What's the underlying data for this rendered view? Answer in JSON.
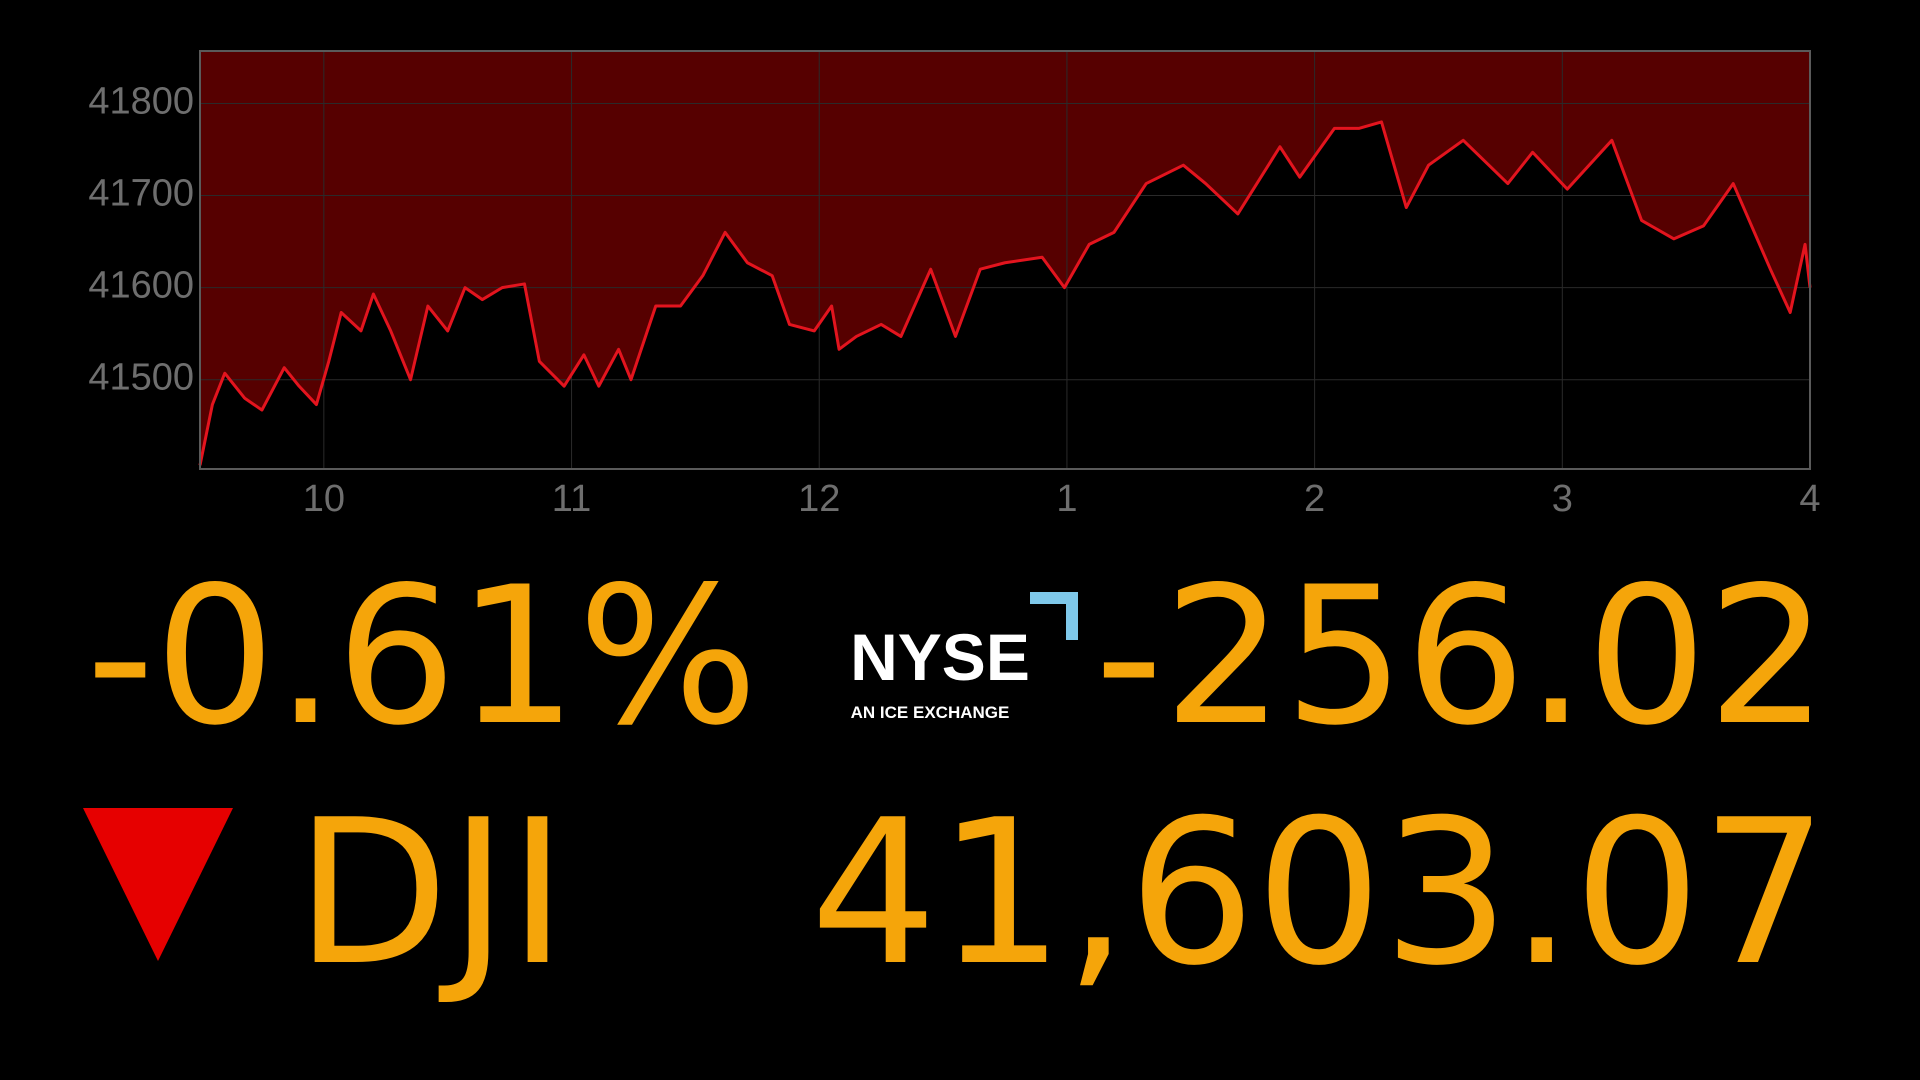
{
  "chart_data": {
    "type": "line",
    "x": [
      9.5,
      9.55,
      9.6,
      9.68,
      9.75,
      9.84,
      9.9,
      9.97,
      10.02,
      10.07,
      10.15,
      10.2,
      10.27,
      10.35,
      10.42,
      10.5,
      10.57,
      10.64,
      10.72,
      10.81,
      10.87,
      10.97,
      11.05,
      11.11,
      11.19,
      11.24,
      11.34,
      11.44,
      11.53,
      11.62,
      11.71,
      11.81,
      11.88,
      11.98,
      12.05,
      12.08,
      12.15,
      12.25,
      12.33,
      12.45,
      12.55,
      12.65,
      12.75,
      12.9,
      12.99,
      13.09,
      13.19,
      13.32,
      13.47,
      13.56,
      13.69,
      13.86,
      13.94,
      14.08,
      14.18,
      14.27,
      14.37,
      14.46,
      14.6,
      14.78,
      14.88,
      15.02,
      15.2,
      15.32,
      15.45,
      15.57,
      15.69,
      15.84,
      15.92,
      15.98,
      16.0
    ],
    "values": [
      41407,
      41473,
      41507,
      41480,
      41467,
      41513,
      41493,
      41473,
      41520,
      41573,
      41553,
      41593,
      41553,
      41500,
      41580,
      41553,
      41600,
      41587,
      41600,
      41604,
      41520,
      41493,
      41527,
      41493,
      41533,
      41500,
      41580,
      41580,
      41613,
      41660,
      41627,
      41613,
      41560,
      41553,
      41580,
      41533,
      41547,
      41560,
      41547,
      41620,
      41547,
      41620,
      41627,
      41633,
      41600,
      41647,
      41660,
      41713,
      41733,
      41713,
      41680,
      41753,
      41720,
      41773,
      41773,
      41780,
      41687,
      41733,
      41760,
      41713,
      41747,
      41707,
      41760,
      41673,
      41653,
      41667,
      41713,
      41620,
      41573,
      41647,
      41600
    ],
    "color": "#e3141e",
    "fill_color": "#560000",
    "xlim": [
      9.5,
      16
    ],
    "xticks": [
      10,
      11,
      12,
      {
        "value": 13,
        "label": "1"
      },
      {
        "value": 14,
        "label": "2"
      },
      {
        "value": 15,
        "label": "3"
      },
      {
        "value": 16,
        "label": "4"
      }
    ],
    "ylim": [
      41403,
      41857
    ],
    "yticks": [
      41500,
      41600,
      41700,
      41800
    ],
    "grid": true
  },
  "ticker": {
    "percent_change": "-0.61%",
    "point_change": "-256.02",
    "symbol": "DJI",
    "price": "41,603.07"
  },
  "logo": {
    "name": "NYSE",
    "tagline": "AN ICE EXCHANGE"
  }
}
